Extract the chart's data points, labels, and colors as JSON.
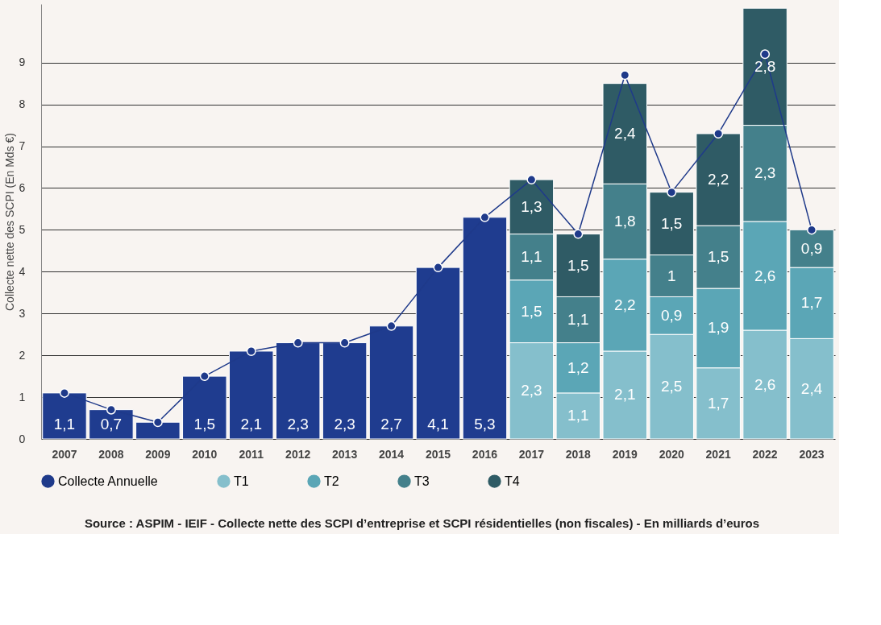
{
  "chart_data": {
    "type": "bar",
    "stacked": true,
    "ylabel": "Collecte nette des SCPI (En Mds €)",
    "categories": [
      "2007",
      "2008",
      "2009",
      "2010",
      "2011",
      "2012",
      "2013",
      "2014",
      "2015",
      "2016",
      "2017",
      "2018",
      "2019",
      "2020",
      "2021",
      "2022",
      "2023"
    ],
    "series": [
      {
        "name": "Collecte Annuelle",
        "type": "line",
        "color": "#1f3a8a",
        "values": [
          1.1,
          0.7,
          0.4,
          1.5,
          2.1,
          2.3,
          2.3,
          2.7,
          4.1,
          5.3,
          6.2,
          4.9,
          8.7,
          5.9,
          7.3,
          9.2,
          5.0
        ]
      },
      {
        "color": "#1f3c8f",
        "values": [
          1.1,
          0.7,
          0.4,
          1.5,
          2.1,
          2.3,
          2.3,
          2.7,
          4.1,
          5.3,
          null,
          null,
          null,
          null,
          null,
          null,
          null
        ],
        "value_labels": [
          "1,1",
          "0,7",
          null,
          "1,5",
          "2,1",
          "2,3",
          "2,3",
          "2,7",
          "4,1",
          "5,3",
          null,
          null,
          null,
          null,
          null,
          null,
          null
        ]
      },
      {
        "name": "T1",
        "color": "#85bfcc",
        "values": [
          null,
          null,
          null,
          null,
          null,
          null,
          null,
          null,
          null,
          null,
          2.3,
          1.1,
          2.1,
          2.5,
          1.7,
          2.6,
          2.4
        ],
        "value_labels": [
          null,
          null,
          null,
          null,
          null,
          null,
          null,
          null,
          null,
          null,
          "2,3",
          "1,1",
          "2,1",
          "2,5",
          "1,7",
          "2,6",
          "2,4"
        ]
      },
      {
        "name": "T2",
        "color": "#5ba6b6",
        "values": [
          null,
          null,
          null,
          null,
          null,
          null,
          null,
          null,
          null,
          null,
          1.5,
          1.2,
          2.2,
          0.9,
          1.9,
          2.6,
          1.7
        ],
        "value_labels": [
          null,
          null,
          null,
          null,
          null,
          null,
          null,
          null,
          null,
          null,
          "1,5",
          "1,2",
          "2,2",
          "0,9",
          "1,9",
          "2,6",
          "1,7"
        ]
      },
      {
        "name": "T3",
        "color": "#44808b",
        "values": [
          null,
          null,
          null,
          null,
          null,
          null,
          null,
          null,
          null,
          null,
          1.1,
          1.1,
          1.8,
          1.0,
          1.5,
          2.3,
          0.9
        ],
        "value_labels": [
          null,
          null,
          null,
          null,
          null,
          null,
          null,
          null,
          null,
          null,
          "1,1",
          "1,1",
          "1,8",
          "1",
          "1,5",
          "2,3",
          "0,9"
        ]
      },
      {
        "name": "T4",
        "color": "#2f5b65",
        "values": [
          null,
          null,
          null,
          null,
          null,
          null,
          null,
          null,
          null,
          null,
          1.3,
          1.5,
          2.4,
          1.5,
          2.2,
          2.8,
          null
        ],
        "value_labels": [
          null,
          null,
          null,
          null,
          null,
          null,
          null,
          null,
          null,
          null,
          "1,3",
          "1,5",
          "2,4",
          "1,5",
          "2,2",
          "2,8",
          null
        ]
      }
    ],
    "ylim": [
      0,
      10.4
    ],
    "yticks": [
      0,
      1,
      2,
      3,
      4,
      5,
      6,
      7,
      8,
      9
    ],
    "grid": "y",
    "legend": "bottom",
    "marker": "circle",
    "annotations": [
      "Source : ASPIM - IEIF - Collecte nette des SCPI d’entreprise et SCPI résidentielles (non fiscales) - En milliards d’euros"
    ]
  }
}
